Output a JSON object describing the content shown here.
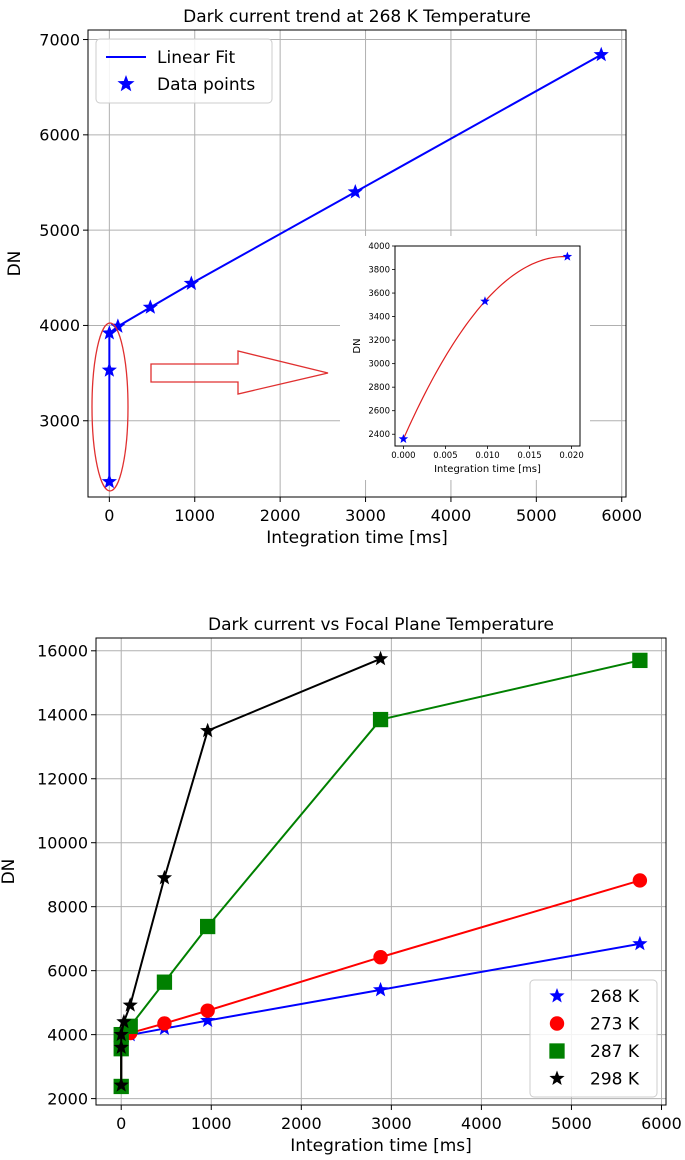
{
  "chart_data": [
    {
      "type": "line",
      "title": "Dark current trend at 268 K Temperature",
      "xlabel": "Integration time [ms]",
      "ylabel": "DN",
      "xlim": [
        -250,
        6050
      ],
      "ylim": [
        2200,
        7100
      ],
      "x_ticks": [
        0,
        1000,
        2000,
        3000,
        4000,
        5000,
        6000
      ],
      "y_ticks": [
        3000,
        4000,
        5000,
        6000,
        7000
      ],
      "grid": true,
      "legend_position": "top-left",
      "legend": [
        "Linear Fit",
        "Data points"
      ],
      "series": [
        {
          "name": "Linear Fit",
          "color": "#0000ff",
          "style": "line",
          "x": [
            0,
            0.01,
            0.02,
            100,
            480,
            960,
            2880,
            5760
          ],
          "y": [
            2360,
            3530,
            3920,
            3990,
            4190,
            4440,
            5400,
            6840
          ]
        },
        {
          "name": "Data points",
          "color": "#0000ff",
          "style": "star",
          "x": [
            0,
            0.01,
            0.02,
            100,
            480,
            960,
            2880,
            5760
          ],
          "y": [
            2360,
            3530,
            3920,
            3990,
            4190,
            4440,
            5400,
            6840
          ]
        }
      ],
      "annotation": {
        "shape": "ellipse-and-arrow",
        "color": "#e03030"
      },
      "inset": {
        "type": "line",
        "xlabel": "Integration time [ms]",
        "ylabel": "DN",
        "xlim": [
          -0.001,
          0.021
        ],
        "ylim": [
          2300,
          4000
        ],
        "x_ticks": [
          "0.000",
          "0.005",
          "0.010",
          "0.015",
          "0.020"
        ],
        "x_tick_values": [
          0,
          0.005,
          0.01,
          0.015,
          0.02
        ],
        "y_ticks": [
          2400,
          2600,
          2800,
          3000,
          3200,
          3400,
          3600,
          3800,
          4000
        ],
        "curve_color": "#e02020",
        "marker_color": "#0000ff",
        "points_x": [
          0,
          0.0097,
          0.0195
        ],
        "points_y": [
          2360,
          3530,
          3910
        ]
      }
    },
    {
      "type": "line",
      "title": "Dark current vs Focal Plane Temperature",
      "xlabel": "Integration time [ms]",
      "ylabel": "DN",
      "xlim": [
        -280,
        6050
      ],
      "ylim": [
        1800,
        16400
      ],
      "x_ticks": [
        0,
        1000,
        2000,
        3000,
        4000,
        5000,
        6000
      ],
      "y_ticks": [
        2000,
        4000,
        6000,
        8000,
        10000,
        12000,
        14000,
        16000
      ],
      "grid": true,
      "legend_position": "bottom-right",
      "series": [
        {
          "name": "268 K",
          "color": "#0000ff",
          "marker": "star",
          "x": [
            0,
            0.01,
            0.02,
            100,
            480,
            960,
            2880,
            5760
          ],
          "y": [
            2360,
            3530,
            3920,
            3990,
            4190,
            4440,
            5400,
            6840
          ]
        },
        {
          "name": "273 K",
          "color": "#ff0000",
          "marker": "circle",
          "x": [
            0,
            0.01,
            0.02,
            100,
            480,
            960,
            2880,
            5760
          ],
          "y": [
            2380,
            3550,
            3960,
            4050,
            4350,
            4750,
            6420,
            8820
          ]
        },
        {
          "name": "287 K",
          "color": "#008000",
          "marker": "square",
          "x": [
            0,
            0.01,
            0.02,
            100,
            480,
            960,
            2880,
            5760
          ],
          "y": [
            2380,
            3560,
            4000,
            4260,
            5640,
            7380,
            13850,
            15700
          ]
        },
        {
          "name": "298 K",
          "color": "#000000",
          "marker": "star",
          "x": [
            0,
            0.01,
            0.02,
            30,
            100,
            480,
            960,
            2880
          ],
          "y": [
            2420,
            3600,
            4000,
            4400,
            4920,
            8900,
            13500,
            15750
          ]
        }
      ]
    }
  ]
}
